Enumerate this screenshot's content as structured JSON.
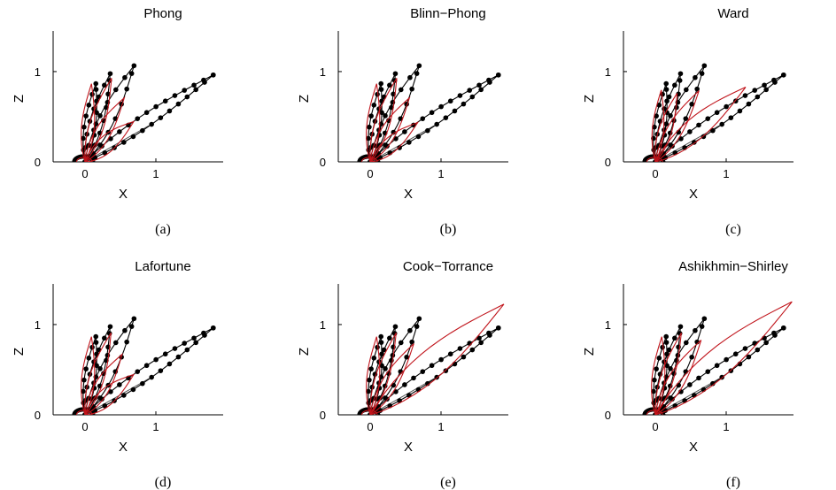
{
  "figure": {
    "panels": [
      {
        "title": "Phong",
        "caption": "(a)"
      },
      {
        "title": "Blinn−Phong",
        "caption": "(b)"
      },
      {
        "title": "Ward",
        "caption": "(c)"
      },
      {
        "title": "Lafortune",
        "caption": "(d)"
      },
      {
        "title": "Cook−Torrance",
        "caption": "(e)"
      },
      {
        "title": "Ashikhmin−Shirley",
        "caption": "(f)"
      }
    ]
  },
  "chart_data": [
    {
      "type": "line",
      "title": "Phong",
      "xlabel": "X",
      "ylabel": "Z",
      "xticks": [
        "0",
        "1"
      ],
      "yticks": [
        "0",
        "1"
      ],
      "xlim": [
        -0.45,
        1.95
      ],
      "ylim": [
        0,
        1.45
      ],
      "model_fit": {
        "lobe_lengths": [
          0.87,
          1.0,
          0.9,
          0.82
        ],
        "lobe_widths": [
          0.09,
          0.1,
          0.1,
          0.1
        ],
        "series_color": "#c0141b"
      }
    },
    {
      "type": "line",
      "title": "Blinn−Phong",
      "xlabel": "X",
      "ylabel": "Z",
      "xticks": [
        "0",
        "1"
      ],
      "yticks": [
        "0",
        "1"
      ],
      "xlim": [
        -0.45,
        1.95
      ],
      "ylim": [
        0,
        1.45
      ],
      "model_fit": {
        "lobe_lengths": [
          0.87,
          1.0,
          0.9,
          0.8
        ],
        "lobe_widths": [
          0.09,
          0.1,
          0.1,
          0.09
        ],
        "series_color": "#c0141b"
      }
    },
    {
      "type": "line",
      "title": "Ward",
      "xlabel": "X",
      "ylabel": "Z",
      "xticks": [
        "0",
        "1"
      ],
      "yticks": [
        "0",
        "1"
      ],
      "xlim": [
        -0.45,
        1.95
      ],
      "ylim": [
        0,
        1.45
      ],
      "model_fit": {
        "lobe_lengths": [
          0.8,
          0.82,
          1.0,
          1.52
        ],
        "lobe_widths": [
          0.08,
          0.09,
          0.1,
          0.13
        ],
        "series_color": "#c0141b"
      }
    },
    {
      "type": "line",
      "title": "Lafortune",
      "xlabel": "X",
      "ylabel": "Z",
      "xticks": [
        "0",
        "1"
      ],
      "yticks": [
        "0",
        "1"
      ],
      "xlim": [
        -0.45,
        1.95
      ],
      "ylim": [
        0,
        1.45
      ],
      "model_fit": {
        "lobe_lengths": [
          0.87,
          0.98,
          0.85,
          0.82
        ],
        "lobe_widths": [
          0.09,
          0.1,
          0.1,
          0.1
        ],
        "series_color": "#c0141b"
      }
    },
    {
      "type": "line",
      "title": "Cook−Torrance",
      "xlabel": "X",
      "ylabel": "Z",
      "xticks": [
        "0",
        "1"
      ],
      "yticks": [
        "0",
        "1"
      ],
      "xlim": [
        -0.45,
        1.95
      ],
      "ylim": [
        0,
        1.45
      ],
      "model_fit": {
        "lobe_lengths": [
          0.87,
          0.98,
          1.0,
          2.25
        ],
        "lobe_widths": [
          0.09,
          0.09,
          0.1,
          0.17
        ],
        "series_color": "#c0141b"
      }
    },
    {
      "type": "line",
      "title": "Ashikhmin−Shirley",
      "xlabel": "X",
      "ylabel": "Z",
      "xticks": [
        "0",
        "1"
      ],
      "yticks": [
        "0",
        "1"
      ],
      "xlim": [
        -0.45,
        1.95
      ],
      "ylim": [
        0,
        1.45
      ],
      "model_fit": {
        "lobe_lengths": [
          0.87,
          0.98,
          1.05,
          2.3
        ],
        "lobe_widths": [
          0.09,
          0.09,
          0.11,
          0.17
        ],
        "series_color": "#c0141b"
      }
    }
  ],
  "measured_lobes": [
    {
      "angle_deg": 80,
      "length": 0.88,
      "width": 0.08
    },
    {
      "angle_deg": 70,
      "length": 1.04,
      "width": 0.09
    },
    {
      "angle_deg": 57,
      "length": 1.27,
      "width": 0.1
    },
    {
      "angle_deg": 28,
      "length": 2.05,
      "width": 0.075
    }
  ],
  "model_lobe_angles_deg": [
    84,
    68,
    52,
    33
  ],
  "colors": {
    "measured": "#000000",
    "model": "#c0141b",
    "axes": "#000000"
  }
}
